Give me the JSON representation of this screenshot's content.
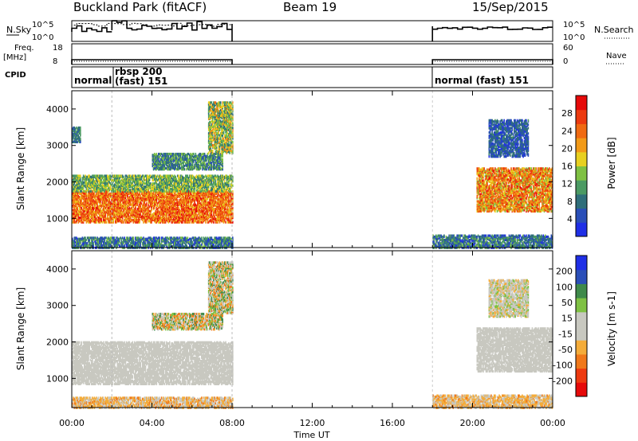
{
  "header": {
    "title": "Buckland Park (fitACF)",
    "beam": "Beam 19",
    "date": "15/Sep/2015"
  },
  "status_panels": {
    "nsky": {
      "label": "N.Sky",
      "ticks": [
        "10^5",
        "10^0"
      ],
      "right_label": "N.Search",
      "right_ticks": [
        "10^5",
        "10^0"
      ]
    },
    "freq": {
      "label": "Freq.",
      "unit": "[MHz]",
      "ticks": [
        "18",
        "8"
      ],
      "right_label": "Nave",
      "right_ticks": [
        "60",
        "0"
      ]
    },
    "cpid": {
      "label": "CPID",
      "segments": [
        {
          "text": "normal"
        },
        {
          "text": "rbsp 200"
        },
        {
          "text": "(fast) 151"
        },
        {
          "text": "normal (fast) 151"
        }
      ]
    }
  },
  "chart_data": [
    {
      "type": "heatmap",
      "name": "power",
      "ylabel": "Slant Range [km]",
      "ylim": [
        200,
        4500
      ],
      "yticks": [
        1000,
        2000,
        3000,
        4000
      ],
      "xlim": [
        0,
        24
      ],
      "colorbar": {
        "label": "Power [dB]",
        "range": [
          0,
          32
        ],
        "ticks": [
          4,
          8,
          12,
          16,
          20,
          24,
          28
        ],
        "colors": [
          "#1f2fe6",
          "#2a4fb8",
          "#2f6e7a",
          "#4b9a63",
          "#7fc143",
          "#e8d020",
          "#f29a18",
          "#f06a12",
          "#ec3a10",
          "#e60a0a"
        ]
      },
      "regions": [
        {
          "t0": 0.0,
          "t1": 8.0,
          "r0": 200,
          "r1": 500,
          "value": 8,
          "spread": 6
        },
        {
          "t0": 0.0,
          "t1": 8.0,
          "r0": 900,
          "r1": 1750,
          "value": 24,
          "spread": 6
        },
        {
          "t0": 0.0,
          "t1": 8.0,
          "r0": 1750,
          "r1": 2200,
          "value": 13,
          "spread": 6
        },
        {
          "t0": 4.0,
          "t1": 7.5,
          "r0": 2350,
          "r1": 2800,
          "value": 10,
          "spread": 6
        },
        {
          "t0": 6.8,
          "t1": 8.0,
          "r0": 2800,
          "r1": 4200,
          "value": 15,
          "spread": 8
        },
        {
          "t0": 0.0,
          "t1": 0.4,
          "r0": 3100,
          "r1": 3500,
          "value": 8,
          "spread": 4
        },
        {
          "t0": 18.0,
          "t1": 24.0,
          "r0": 200,
          "r1": 550,
          "value": 8,
          "spread": 6
        },
        {
          "t0": 20.2,
          "t1": 24.0,
          "r0": 1200,
          "r1": 2400,
          "value": 22,
          "spread": 8
        },
        {
          "t0": 20.8,
          "t1": 22.8,
          "r0": 2700,
          "r1": 3700,
          "value": 6,
          "spread": 4
        }
      ]
    },
    {
      "type": "heatmap",
      "name": "velocity",
      "ylabel": "Slant Range [km]",
      "ylim": [
        200,
        4500
      ],
      "yticks": [
        1000,
        2000,
        3000,
        4000
      ],
      "xlim": [
        0,
        24
      ],
      "colorbar": {
        "label": "Velocity [m s-1]",
        "range": [
          -250,
          250
        ],
        "ticks": [
          200,
          100,
          50,
          15,
          -15,
          -50,
          -100,
          -200
        ],
        "colors": [
          "#e60a0a",
          "#ee3a10",
          "#f0781a",
          "#f4ac3a",
          "#c8c8c0",
          "#c8c8c0",
          "#7fc143",
          "#3f8a4a",
          "#2b4fb8",
          "#1f2fe6"
        ]
      },
      "regions": [
        {
          "t0": 0.0,
          "t1": 8.0,
          "r0": 200,
          "r1": 500,
          "value": -60,
          "spread": 60
        },
        {
          "t0": 0.0,
          "t1": 8.0,
          "r0": 850,
          "r1": 2000,
          "value": 0,
          "spread": 20
        },
        {
          "t0": 4.0,
          "t1": 7.5,
          "r0": 2350,
          "r1": 2800,
          "value": 0,
          "spread": 150
        },
        {
          "t0": 6.8,
          "t1": 8.0,
          "r0": 2800,
          "r1": 4200,
          "value": 0,
          "spread": 150
        },
        {
          "t0": 18.0,
          "t1": 24.0,
          "r0": 200,
          "r1": 550,
          "value": -60,
          "spread": 50
        },
        {
          "t0": 20.2,
          "t1": 24.0,
          "r0": 1200,
          "r1": 2400,
          "value": 0,
          "spread": 20
        },
        {
          "t0": 20.8,
          "t1": 22.8,
          "r0": 2700,
          "r1": 3700,
          "value": 0,
          "spread": 80
        }
      ]
    }
  ],
  "xaxis": {
    "label": "Time UT",
    "ticks": [
      "00:00",
      "04:00",
      "08:00",
      "12:00",
      "16:00",
      "20:00",
      "00:00"
    ],
    "range_hours": [
      0,
      24
    ]
  },
  "data_intervals": [
    [
      0.0,
      8.0
    ],
    [
      18.0,
      24.0
    ]
  ]
}
